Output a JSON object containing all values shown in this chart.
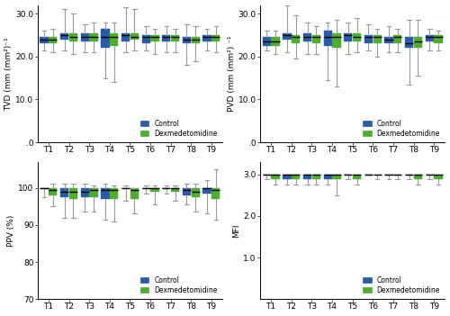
{
  "time_points": [
    "T1",
    "T2",
    "T3",
    "T4",
    "T5",
    "T6",
    "T7",
    "T8",
    "T9"
  ],
  "colors": {
    "control": "#2B5BA8",
    "dex": "#4FAD2E"
  },
  "TVD": {
    "control": {
      "whislo": [
        21.5,
        21.5,
        21.0,
        15.0,
        21.0,
        21.5,
        21.0,
        18.0,
        21.5
      ],
      "q1": [
        23.0,
        24.0,
        23.5,
        22.0,
        23.5,
        23.0,
        23.5,
        23.0,
        23.5
      ],
      "med": [
        24.0,
        25.0,
        24.5,
        24.5,
        25.0,
        24.5,
        24.5,
        24.0,
        24.5
      ],
      "q3": [
        24.5,
        25.5,
        25.5,
        26.5,
        25.5,
        25.0,
        25.0,
        24.5,
        25.0
      ],
      "whishi": [
        26.0,
        31.0,
        27.5,
        28.0,
        31.5,
        27.0,
        27.0,
        27.5,
        26.5
      ]
    },
    "dex": {
      "whislo": [
        21.0,
        20.5,
        21.0,
        14.0,
        21.5,
        20.5,
        21.0,
        19.0,
        21.0
      ],
      "q1": [
        23.0,
        23.5,
        23.5,
        22.5,
        24.0,
        23.5,
        23.5,
        23.0,
        23.5
      ],
      "med": [
        24.0,
        24.5,
        24.5,
        24.5,
        24.5,
        24.5,
        24.5,
        24.0,
        24.5
      ],
      "q3": [
        24.5,
        25.5,
        25.5,
        25.5,
        25.5,
        25.0,
        25.0,
        24.5,
        25.0
      ],
      "whishi": [
        26.5,
        30.0,
        28.0,
        28.0,
        31.0,
        26.5,
        26.5,
        27.0,
        27.0
      ]
    }
  },
  "PVD": {
    "control": {
      "whislo": [
        21.5,
        21.0,
        20.5,
        14.5,
        20.5,
        21.5,
        21.0,
        13.5,
        21.5
      ],
      "q1": [
        22.5,
        24.0,
        23.5,
        22.5,
        23.5,
        23.0,
        23.0,
        22.0,
        23.5
      ],
      "med": [
        23.5,
        25.0,
        24.5,
        24.5,
        25.0,
        24.5,
        24.0,
        23.0,
        24.5
      ],
      "q3": [
        24.5,
        25.5,
        25.5,
        26.0,
        25.5,
        25.0,
        24.5,
        24.5,
        25.0
      ],
      "whishi": [
        26.0,
        32.0,
        28.0,
        28.0,
        28.0,
        27.5,
        27.0,
        28.5,
        26.5
      ]
    },
    "dex": {
      "whislo": [
        20.5,
        19.5,
        20.5,
        13.0,
        21.0,
        20.0,
        21.0,
        15.5,
        21.5
      ],
      "q1": [
        22.5,
        23.0,
        23.0,
        22.0,
        23.5,
        23.0,
        23.0,
        22.0,
        23.0
      ],
      "med": [
        23.5,
        24.5,
        24.5,
        24.5,
        24.5,
        24.5,
        24.5,
        23.5,
        24.5
      ],
      "q3": [
        24.5,
        25.0,
        25.0,
        25.5,
        25.5,
        25.0,
        25.0,
        24.5,
        25.0
      ],
      "whishi": [
        26.0,
        29.5,
        27.0,
        28.5,
        29.0,
        26.5,
        26.5,
        28.5,
        26.0
      ]
    }
  },
  "PPV": {
    "control": {
      "whislo": [
        97.5,
        92.0,
        93.5,
        91.5,
        96.5,
        98.5,
        98.5,
        95.5,
        93.0
      ],
      "q1": [
        100.0,
        97.5,
        97.5,
        97.0,
        100.0,
        100.0,
        100.0,
        98.0,
        98.5
      ],
      "med": [
        100.0,
        99.0,
        99.0,
        99.5,
        100.0,
        100.0,
        100.0,
        99.5,
        100.0
      ],
      "q3": [
        100.0,
        100.0,
        100.0,
        100.0,
        100.0,
        100.0,
        100.0,
        100.0,
        100.0
      ],
      "whishi": [
        100.0,
        101.0,
        101.0,
        101.0,
        100.5,
        100.5,
        100.5,
        101.0,
        102.0
      ]
    },
    "dex": {
      "whislo": [
        95.0,
        92.0,
        93.5,
        91.0,
        93.0,
        95.5,
        96.5,
        93.5,
        91.5
      ],
      "q1": [
        98.0,
        97.0,
        97.5,
        97.0,
        97.0,
        99.0,
        99.0,
        97.5,
        97.0
      ],
      "med": [
        99.5,
        99.0,
        99.5,
        99.5,
        99.5,
        100.0,
        100.0,
        99.0,
        99.5
      ],
      "q3": [
        100.0,
        100.0,
        100.0,
        100.0,
        100.0,
        100.0,
        100.0,
        100.0,
        100.0
      ],
      "whishi": [
        101.0,
        101.0,
        100.5,
        100.5,
        100.0,
        100.5,
        100.5,
        101.0,
        105.0
      ]
    }
  },
  "MFI": {
    "control": {
      "whislo": [
        2.88,
        2.75,
        2.75,
        2.75,
        2.88,
        3.0,
        2.88,
        2.88,
        2.88
      ],
      "q1": [
        3.0,
        2.88,
        2.88,
        2.88,
        3.0,
        3.0,
        3.0,
        3.0,
        3.0
      ],
      "med": [
        3.0,
        3.0,
        3.0,
        3.0,
        3.0,
        3.0,
        3.0,
        3.0,
        3.0
      ],
      "q3": [
        3.0,
        3.0,
        3.0,
        3.0,
        3.0,
        3.0,
        3.0,
        3.0,
        3.0
      ],
      "whishi": [
        3.0,
        3.0,
        3.0,
        3.0,
        3.0,
        3.0,
        3.0,
        3.0,
        3.0
      ]
    },
    "dex": {
      "whislo": [
        2.75,
        2.75,
        2.75,
        2.5,
        2.75,
        2.88,
        2.88,
        2.75,
        2.75
      ],
      "q1": [
        2.88,
        2.88,
        2.88,
        2.88,
        2.88,
        3.0,
        3.0,
        2.88,
        2.88
      ],
      "med": [
        3.0,
        3.0,
        3.0,
        3.0,
        3.0,
        3.0,
        3.0,
        3.0,
        3.0
      ],
      "q3": [
        3.0,
        3.0,
        3.0,
        3.0,
        3.0,
        3.0,
        3.0,
        3.0,
        3.0
      ],
      "whishi": [
        3.0,
        3.0,
        3.0,
        3.0,
        3.0,
        3.0,
        3.0,
        3.0,
        3.0
      ]
    }
  },
  "ylims": {
    "TVD": [
      0,
      32
    ],
    "PVD": [
      0,
      32
    ],
    "PPV": [
      70,
      107
    ],
    "MFI": [
      0,
      3.3
    ]
  },
  "yticks": {
    "TVD": [
      0,
      10.0,
      20.0,
      30.0
    ],
    "PVD": [
      0,
      10.0,
      20.0,
      30.0
    ],
    "PPV": [
      70,
      80,
      90,
      100
    ],
    "MFI": [
      1.0,
      2.0,
      3.0
    ]
  },
  "yticklabels": {
    "TVD": [
      ".0",
      "10.0",
      "20.0",
      "30.0"
    ],
    "PVD": [
      ".0",
      "10.0",
      "20.0",
      "30.0"
    ],
    "PPV": [
      "70",
      "80",
      "90",
      "100"
    ],
    "MFI": [
      "1.0",
      "2.0",
      "3.0"
    ]
  },
  "ylabels": {
    "TVD": "TVD (mm (mm²)⁻¹",
    "PVD": "PVD (mm (mm²) ⁻¹",
    "PPV": "PPV (%)",
    "MFI": "MFI"
  },
  "legend_loc": {
    "TVD": "lower center",
    "PVD": "lower center",
    "PPV": "lower center",
    "MFI": "lower center"
  }
}
